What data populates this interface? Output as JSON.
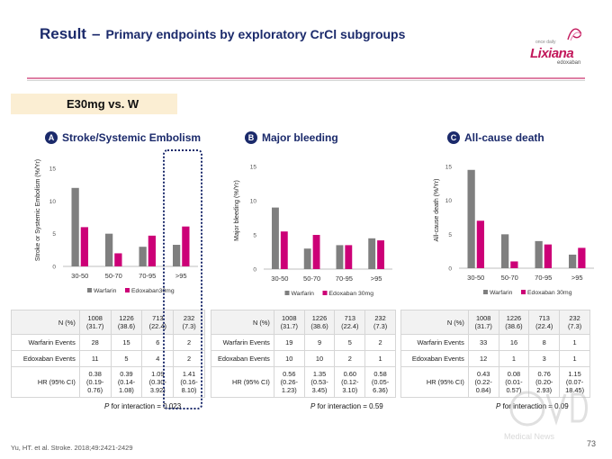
{
  "header": {
    "result_label": "Result",
    "dash": "–",
    "title": "Primary endpoints by exploratory CrCl subgroups"
  },
  "logo": {
    "brand": "Lixiana",
    "generic": "edoxaban",
    "small_text": "once daily"
  },
  "subtitle": "E30mg vs. W",
  "colors": {
    "warfarin": "#7f7f7f",
    "edoxaban": "#cc0077",
    "heading": "#1b2a6b",
    "accent": "#c2185b"
  },
  "panels": [
    {
      "letter": "A",
      "title": "Stroke/Systemic Embolism",
      "table": {
        "n_label": "N (%)",
        "n": [
          [
            "1008",
            "(31.7)"
          ],
          [
            "1226",
            "(38.6)"
          ],
          [
            "713",
            "(22.4)"
          ],
          [
            "232",
            "(7.3)"
          ]
        ],
        "warf_label": "Warfarin Events",
        "warf": [
          "28",
          "15",
          "6",
          "2"
        ],
        "edox_label": "Edoxaban Events",
        "edox": [
          "11",
          "5",
          "4",
          "2"
        ],
        "hr_label": "HR (95% CI)",
        "hr": [
          [
            "0.38",
            "(0.19-",
            "0.76)"
          ],
          [
            "0.39",
            "(0.14-",
            "1.08)"
          ],
          [
            "1.09",
            "(0.30-",
            "3.92)"
          ],
          [
            "1.41",
            "(0.16-",
            "8.10)"
          ]
        ]
      },
      "p_interaction": {
        "p": "P",
        "text": " for interaction = 0.023"
      }
    },
    {
      "letter": "B",
      "title": "Major bleeding",
      "table": {
        "n_label": "N (%)",
        "n": [
          [
            "1008",
            "(31.7)"
          ],
          [
            "1226",
            "(38.6)"
          ],
          [
            "713",
            "(22.4)"
          ],
          [
            "232",
            "(7.3)"
          ]
        ],
        "warf_label": "Warfarin Events",
        "warf": [
          "19",
          "9",
          "5",
          "2"
        ],
        "edox_label": "Edoxaban Events",
        "edox": [
          "10",
          "10",
          "2",
          "1"
        ],
        "hr_label": "HR (95% CI)",
        "hr": [
          [
            "0.56",
            "(0.26-",
            "1.23)"
          ],
          [
            "1.35",
            "(0.53-",
            "3.45)"
          ],
          [
            "0.60",
            "(0.12-",
            "3.10)"
          ],
          [
            "0.58",
            "(0.05-",
            "6.36)"
          ]
        ]
      },
      "p_interaction": {
        "p": "P",
        "text": " for interaction = 0.59"
      }
    },
    {
      "letter": "C",
      "title": "All-cause death",
      "table": {
        "n_label": "N (%)",
        "n": [
          [
            "1008",
            "(31.7)"
          ],
          [
            "1226",
            "(38.6)"
          ],
          [
            "713",
            "(22.4)"
          ],
          [
            "232",
            "(7.3)"
          ]
        ],
        "warf_label": "Warfarin Events",
        "warf": [
          "33",
          "16",
          "8",
          "1"
        ],
        "edox_label": "Edoxaban Events",
        "edox": [
          "12",
          "1",
          "3",
          "1"
        ],
        "hr_label": "HR (95% CI)",
        "hr": [
          [
            "0.43",
            "(0.22-",
            "0.84)"
          ],
          [
            "0.08",
            "(0.01-",
            "0.57)"
          ],
          [
            "0.76",
            "(0.20-",
            "2.93)"
          ],
          [
            "1.15",
            "(0.07-",
            "18.45)"
          ]
        ]
      },
      "p_interaction": {
        "p": "P",
        "text": " for interaction = 0.09"
      }
    }
  ],
  "chart_data": [
    {
      "type": "bar",
      "title": "Stroke/Systemic Embolism",
      "ylabel": "Stroke or Systemic Embolism (%/Yr)",
      "xlabel": "",
      "categories": [
        "30-50",
        "50-70",
        "70-95",
        ">95"
      ],
      "ylim": [
        0,
        15
      ],
      "yticks": [
        0,
        5,
        10,
        15
      ],
      "grid": false,
      "legend": "bottom",
      "series": [
        {
          "name": "Warfarin",
          "values": [
            12.0,
            5.0,
            3.0,
            3.3
          ]
        },
        {
          "name": "Edoxaban30mg",
          "values": [
            6.0,
            2.0,
            4.7,
            6.1
          ]
        }
      ]
    },
    {
      "type": "bar",
      "title": "Major bleeding",
      "ylabel": "Major bleeding (%/Yr)",
      "xlabel": "",
      "categories": [
        "30-50",
        "50-70",
        "70-95",
        ">95"
      ],
      "ylim": [
        0,
        15
      ],
      "yticks": [
        0,
        5,
        10,
        15
      ],
      "grid": false,
      "legend": "bottom",
      "series": [
        {
          "name": "Warfarin",
          "values": [
            9.0,
            3.0,
            3.5,
            4.5
          ]
        },
        {
          "name": "Edoxaban 30mg",
          "values": [
            5.5,
            5.0,
            3.5,
            4.2
          ]
        }
      ]
    },
    {
      "type": "bar",
      "title": "All-cause death",
      "ylabel": "All-cause death (%/Yr)",
      "xlabel": "",
      "categories": [
        "30-50",
        "50-70",
        "70-95",
        ">95"
      ],
      "ylim": [
        0,
        15
      ],
      "yticks": [
        0,
        5,
        10,
        15
      ],
      "grid": false,
      "legend": "bottom",
      "series": [
        {
          "name": "Warfarin",
          "values": [
            14.5,
            5.0,
            4.0,
            2.0
          ]
        },
        {
          "name": "Edoxaban 30mg",
          "values": [
            7.0,
            1.0,
            3.5,
            3.0
          ]
        }
      ]
    }
  ],
  "footer": {
    "citation": "Yu, HT. et al. Stroke. 2018;49:2421-2429",
    "page": "73",
    "watermark": "Medical News"
  }
}
